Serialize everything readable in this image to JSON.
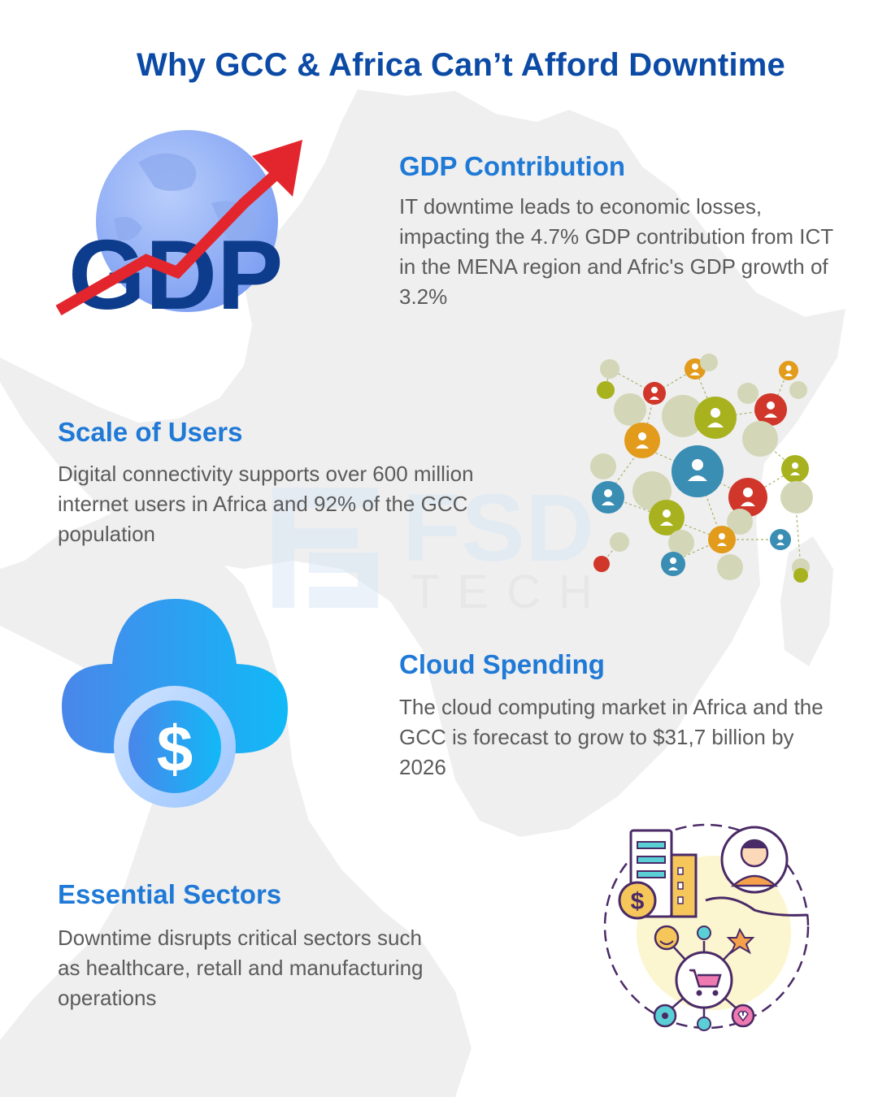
{
  "title": "Why GCC & Africa Can’t Afford Downtime",
  "watermark": {
    "brand": "FSD",
    "sub": "TECH"
  },
  "sections": [
    {
      "heading": "GDP Contribution",
      "text": "IT downtime leads to economic losses, impacting the 4.7% GDP contribution from ICT in the MENA region and Afric's GDP growth of 3.2%",
      "icon": "gdp-growth-icon",
      "icon_text": "GDP"
    },
    {
      "heading": "Scale of Users",
      "text": "Digital connectivity supports over 600 million internet users in Africa and 92% of the GCC population",
      "icon": "user-network-icon"
    },
    {
      "heading": "Cloud Spending",
      "text": "The cloud computing market in Africa and the GCC is forecast to grow to $31,7 billion by 2026",
      "icon": "cloud-dollar-icon",
      "icon_text": "$"
    },
    {
      "heading": "Essential Sectors",
      "text": "Downtime disrupts critical sectors such as healthcare, retall and manufacturing operations",
      "icon": "essential-sectors-icon",
      "icon_text": "$"
    }
  ],
  "colors": {
    "title": "#0b4aa5",
    "heading": "#1f79d6",
    "body_text": "#5b5b5b",
    "map": "#eeeeee"
  }
}
